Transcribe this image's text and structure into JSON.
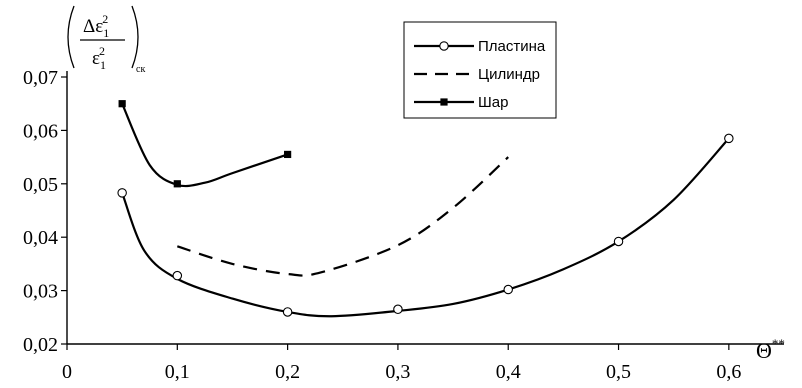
{
  "chart_data": {
    "type": "line",
    "title": "",
    "xlabel": "Θ**",
    "xlabel_parts": {
      "base": "Θ",
      "sup": "**"
    },
    "ylabel": "(Δε1² / ε1²)ск",
    "ylabel_parts": {
      "num_delta": "Δε",
      "num_sub": "1",
      "num_sup": "2",
      "den_base": "ε",
      "den_sub": "1",
      "den_sup": "2",
      "outer_sub": "ск"
    },
    "xlim": [
      0,
      0.65
    ],
    "ylim": [
      0.02,
      0.07
    ],
    "x_ticks": [
      0,
      0.1,
      0.2,
      0.3,
      0.4,
      0.5,
      0.6
    ],
    "x_tick_labels": [
      "0",
      "0,1",
      "0,2",
      "0,3",
      "0,4",
      "0,5",
      "0,6"
    ],
    "y_ticks": [
      0.02,
      0.03,
      0.04,
      0.05,
      0.06,
      0.07
    ],
    "y_tick_labels": [
      "0,02",
      "0,03",
      "0,04",
      "0,05",
      "0,06",
      "0,07"
    ],
    "grid": false,
    "legend_position": "top-right",
    "series": [
      {
        "name": "Пластина",
        "style": "solid",
        "marker": "open-circle",
        "color": "#000000",
        "x": [
          0.05,
          0.1,
          0.2,
          0.3,
          0.4,
          0.5,
          0.6
        ],
        "y": [
          0.0483,
          0.0328,
          0.026,
          0.0265,
          0.0302,
          0.0392,
          0.0585
        ],
        "curve_x": [
          0.05,
          0.07,
          0.1,
          0.15,
          0.2,
          0.24,
          0.3,
          0.35,
          0.4,
          0.45,
          0.5,
          0.55,
          0.6
        ],
        "curve_y": [
          0.0483,
          0.0375,
          0.0322,
          0.0285,
          0.026,
          0.0252,
          0.0262,
          0.0275,
          0.0302,
          0.034,
          0.0392,
          0.047,
          0.0585
        ]
      },
      {
        "name": "Цилиндр",
        "style": "dashed",
        "marker": "none",
        "color": "#000000",
        "curve_x": [
          0.1,
          0.15,
          0.2,
          0.23,
          0.3,
          0.35,
          0.4
        ],
        "curve_y": [
          0.0383,
          0.035,
          0.0331,
          0.0334,
          0.0385,
          0.0455,
          0.055
        ]
      },
      {
        "name": "Шар",
        "style": "solid",
        "marker": "filled-square",
        "color": "#000000",
        "x": [
          0.05,
          0.1,
          0.2
        ],
        "y": [
          0.065,
          0.05,
          0.0555
        ],
        "curve_x": [
          0.05,
          0.075,
          0.1,
          0.125,
          0.15,
          0.2
        ],
        "curve_y": [
          0.065,
          0.0535,
          0.0498,
          0.0502,
          0.052,
          0.0555
        ]
      }
    ]
  }
}
